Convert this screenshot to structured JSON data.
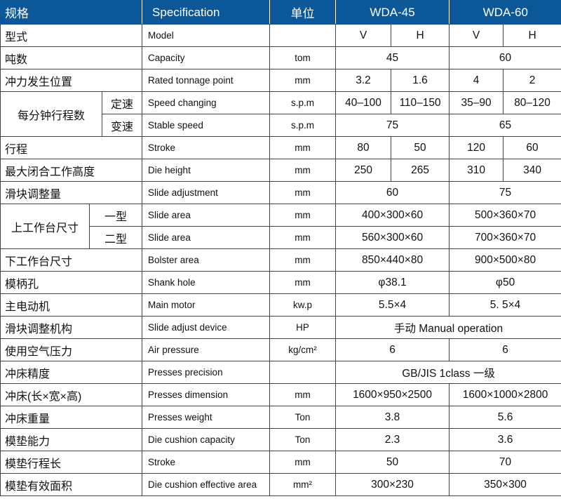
{
  "header": {
    "cn": "规格",
    "spec": "Specification",
    "unit": "单位",
    "model_a": "WDA-45",
    "model_b": "WDA-60"
  },
  "rows": [
    {
      "cn": "型式",
      "en": "Model",
      "unit": "",
      "vals": [
        "V",
        "H",
        "V",
        "H"
      ]
    },
    {
      "cn": "吨数",
      "en": "Capacity",
      "unit": "tom",
      "vals": [
        "45",
        "60"
      ]
    },
    {
      "cn": "冲力发生位置",
      "en": "Rated tonnage point",
      "unit": "mm",
      "vals": [
        "3.2",
        "1.6",
        "4",
        "2"
      ]
    },
    {
      "group": "每分钟行程数",
      "sub": "定速",
      "en": "Speed changing",
      "unit": "s.p.m",
      "vals": [
        "40–100",
        "110–150",
        "35–90",
        "80–120"
      ]
    },
    {
      "sub": "变速",
      "en": "Stable speed",
      "unit": "s.p.m",
      "vals": [
        "75",
        "65"
      ]
    },
    {
      "cn": "行程",
      "en": "Stroke",
      "unit": "mm",
      "vals": [
        "80",
        "50",
        "120",
        "60"
      ]
    },
    {
      "cn": "最大闭合工作高度",
      "en": "Die height",
      "unit": "mm",
      "vals": [
        "250",
        "265",
        "310",
        "340"
      ]
    },
    {
      "cn": "滑块调整量",
      "en": "Slide adjustment",
      "unit": "mm",
      "vals": [
        "60",
        "75"
      ]
    },
    {
      "group2": "上工作台尺寸",
      "sub": "一型",
      "en": "Slide area",
      "unit": "mm",
      "vals": [
        "400×300×60",
        "500×360×70"
      ]
    },
    {
      "sub": "二型",
      "en": "Slide area",
      "unit": "mm",
      "vals": [
        "560×300×60",
        "700×360×70"
      ]
    },
    {
      "cn": "下工作台尺寸",
      "en": "Bolster area",
      "unit": "mm",
      "vals": [
        "850×440×80",
        "900×500×80"
      ]
    },
    {
      "cn": "模柄孔",
      "en": "Shank hole",
      "unit": "mm",
      "vals": [
        "φ38.1",
        "φ50"
      ]
    },
    {
      "cn": "主电动机",
      "en": "Main motor",
      "unit": "kw.p",
      "vals": [
        "5.5×4",
        "5. 5×4"
      ]
    },
    {
      "cn": "滑块调整机构",
      "en": "Slide adjust device",
      "unit": "HP",
      "vals": [
        "手动 Manual operation"
      ]
    },
    {
      "cn": "使用空气压力",
      "en": "Air pressure",
      "unit": "kg/cm²",
      "vals": [
        "6",
        "6"
      ]
    },
    {
      "cn": "冲床精度",
      "en": "Presses precision",
      "unit": "",
      "vals": [
        "GB/JIS 1class 一级"
      ]
    },
    {
      "cn": "冲床(长×宽×高)",
      "en": "Presses dimension",
      "unit": "mm",
      "vals": [
        "1600×950×2500",
        "1600×1000×2800"
      ]
    },
    {
      "cn": "冲床重量",
      "en": "Presses weight",
      "unit": "Ton",
      "vals": [
        "3.8",
        "5.6"
      ]
    },
    {
      "cn": "模垫能力",
      "en": "Die cushion capacity",
      "unit": "Ton",
      "vals": [
        "2.3",
        "3.6"
      ]
    },
    {
      "cn": "模垫行程长",
      "en": "Stroke",
      "unit": "mm",
      "vals": [
        "50",
        "70"
      ]
    },
    {
      "cn": "模垫有效面积",
      "en": "Die cushion effective area",
      "unit": "mm²",
      "vals": [
        "300×230",
        "350×300"
      ]
    }
  ]
}
